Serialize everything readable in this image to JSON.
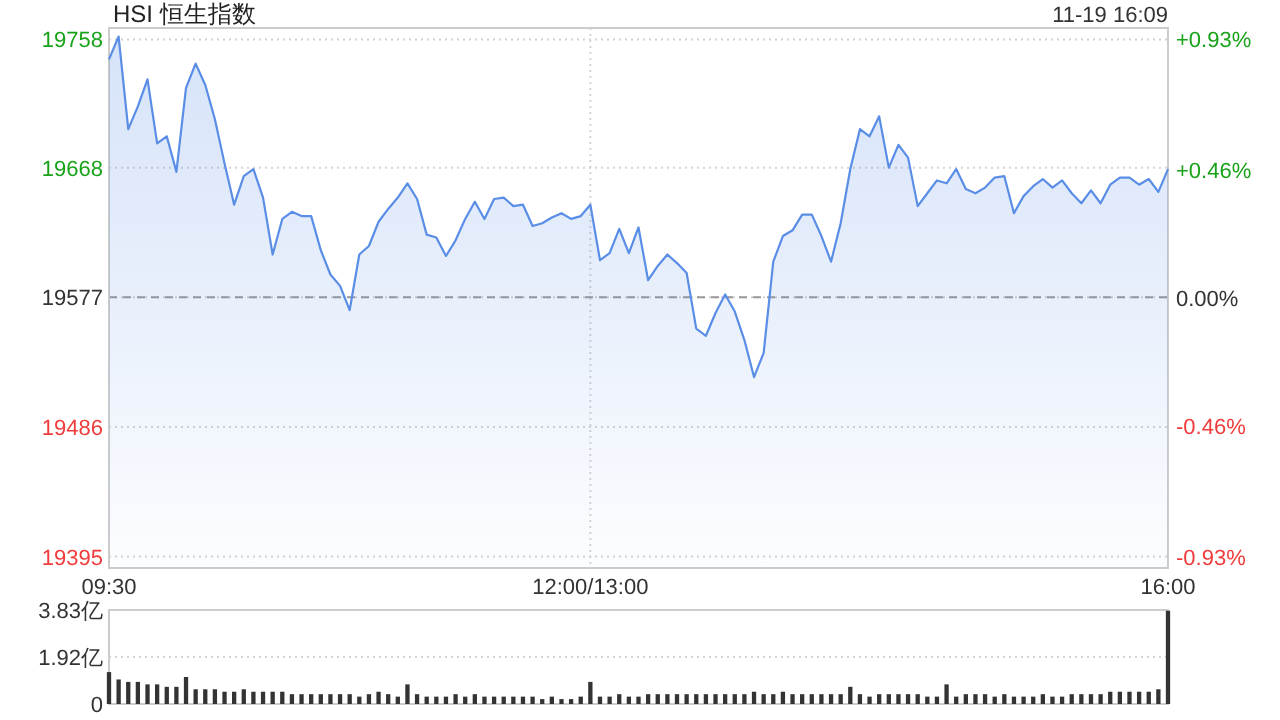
{
  "chart_data": [
    {
      "type": "area",
      "title": "HSI 恒生指数",
      "annotations": [
        "11-19 16:09"
      ],
      "categories": [
        "09:30",
        null,
        null,
        null,
        null,
        null,
        null,
        null,
        null,
        null,
        null,
        null,
        null,
        null,
        null,
        null,
        null,
        null,
        null,
        null,
        null,
        null,
        null,
        null,
        null,
        null,
        null,
        null,
        null,
        null,
        null,
        null,
        null,
        null,
        null,
        null,
        null,
        null,
        null,
        null,
        null,
        null,
        null,
        null,
        null,
        null,
        null,
        null,
        null,
        null,
        "12:00/13:00",
        null,
        null,
        null,
        null,
        null,
        null,
        null,
        null,
        null,
        null,
        null,
        null,
        null,
        null,
        null,
        null,
        null,
        null,
        null,
        null,
        null,
        null,
        null,
        null,
        null,
        null,
        null,
        null,
        null,
        null,
        null,
        null,
        null,
        null,
        null,
        null,
        null,
        null,
        null,
        null,
        null,
        null,
        null,
        null,
        null,
        null,
        null,
        null,
        null,
        null,
        null,
        null,
        null,
        null,
        null,
        null,
        null,
        null,
        null,
        "16:00"
      ],
      "ylim": [
        19387,
        19766
      ],
      "yticks": [
        19395,
        19486,
        19577,
        19668,
        19758
      ],
      "y2lim": [
        -0.97,
        0.97
      ],
      "y2ticks": [
        {
          "value": -0.93,
          "label": "-0.93%"
        },
        {
          "value": -0.46,
          "label": "-0.46%"
        },
        {
          "value": 0,
          "label": "0.00%"
        },
        {
          "value": 0.46,
          "label": "+0.46%"
        },
        {
          "value": 0.93,
          "label": "+0.93%"
        }
      ],
      "grid": true,
      "ref_lines": [
        {
          "axis": "y",
          "value": 19577,
          "label": null,
          "color": "#999999",
          "line_style": "dashed"
        }
      ],
      "series": [
        {
          "color": "#5a8ee6",
          "values": [
            19744,
            19760,
            19695,
            19711,
            19730,
            19685,
            19690,
            19665,
            19724,
            19741,
            19726,
            19702,
            19671,
            19642,
            19662,
            19667,
            19647,
            19607,
            19632,
            19637,
            19634,
            19634,
            19610,
            19593,
            19585,
            19568,
            19607,
            19613,
            19630,
            19639,
            19647,
            19657,
            19646,
            19621,
            19619,
            19606,
            19617,
            19632,
            19644,
            19632,
            19646,
            19647,
            19641,
            19642,
            19627,
            19629,
            19633,
            19636,
            19632,
            19634,
            19642,
            19603,
            19608,
            19625,
            19608,
            19626,
            19589,
            19599,
            19607,
            19601,
            19594,
            19555,
            19550,
            19566,
            19579,
            19567,
            19547,
            19521,
            19538,
            19602,
            19620,
            19624,
            19635,
            19635,
            19620,
            19602,
            19629,
            19667,
            19695,
            19690,
            19704,
            19668,
            19684,
            19675,
            19641,
            19650,
            19659,
            19657,
            19667,
            19653,
            19650,
            19654,
            19661,
            19662,
            19636,
            19648,
            19655,
            19660,
            19654,
            19659,
            19650,
            19643,
            19652,
            19643,
            19656,
            19661,
            19661,
            19656,
            19660,
            19651,
            19667
          ]
        }
      ]
    },
    {
      "type": "bar",
      "ylim": [
        0,
        3.83
      ],
      "categories": [
        null,
        null,
        null,
        null,
        null,
        null,
        null,
        null,
        null,
        null,
        null,
        null,
        null,
        null,
        null,
        null,
        null,
        null,
        null,
        null,
        null,
        null,
        null,
        null,
        null,
        null,
        null,
        null,
        null,
        null,
        null,
        null,
        null,
        null,
        null,
        null,
        null,
        null,
        null,
        null,
        null,
        null,
        null,
        null,
        null,
        null,
        null,
        null,
        null,
        null,
        null,
        null,
        null,
        null,
        null,
        null,
        null,
        null,
        null,
        null,
        null,
        null,
        null,
        null,
        null,
        null,
        null,
        null,
        null,
        null,
        null,
        null,
        null,
        null,
        null,
        null,
        null,
        null,
        null,
        null,
        null,
        null,
        null,
        null,
        null,
        null,
        null,
        null,
        null,
        null,
        null,
        null,
        null,
        null,
        null,
        null,
        null,
        null,
        null,
        null,
        null,
        null,
        null,
        null,
        null,
        null,
        null,
        null,
        null,
        null,
        null
      ],
      "yticks": [
        {
          "value": 0,
          "label": "0"
        },
        {
          "value": 1.92,
          "label": "1.92亿"
        },
        {
          "value": 3.83,
          "label": "3.83亿"
        }
      ],
      "grid": "y",
      "tick_labels": "y",
      "series": [
        {
          "color": "#333333",
          "values": [
            1.3,
            1.0,
            0.9,
            0.9,
            0.8,
            0.8,
            0.7,
            0.7,
            1.1,
            0.6,
            0.6,
            0.6,
            0.5,
            0.5,
            0.6,
            0.5,
            0.5,
            0.5,
            0.5,
            0.4,
            0.4,
            0.4,
            0.4,
            0.4,
            0.4,
            0.4,
            0.3,
            0.4,
            0.5,
            0.4,
            0.3,
            0.8,
            0.4,
            0.3,
            0.3,
            0.3,
            0.4,
            0.3,
            0.4,
            0.3,
            0.3,
            0.3,
            0.3,
            0.3,
            0.3,
            0.2,
            0.3,
            0.2,
            0.2,
            0.3,
            0.9,
            0.3,
            0.3,
            0.4,
            0.3,
            0.3,
            0.4,
            0.4,
            0.4,
            0.4,
            0.4,
            0.4,
            0.4,
            0.4,
            0.4,
            0.4,
            0.4,
            0.5,
            0.4,
            0.4,
            0.5,
            0.4,
            0.4,
            0.4,
            0.4,
            0.4,
            0.4,
            0.7,
            0.4,
            0.3,
            0.4,
            0.4,
            0.4,
            0.4,
            0.4,
            0.3,
            0.3,
            0.8,
            0.3,
            0.4,
            0.4,
            0.4,
            0.3,
            0.4,
            0.3,
            0.3,
            0.3,
            0.4,
            0.3,
            0.3,
            0.4,
            0.4,
            0.4,
            0.4,
            0.5,
            0.5,
            0.5,
            0.5,
            0.5,
            0.6,
            3.8
          ]
        }
      ]
    }
  ]
}
